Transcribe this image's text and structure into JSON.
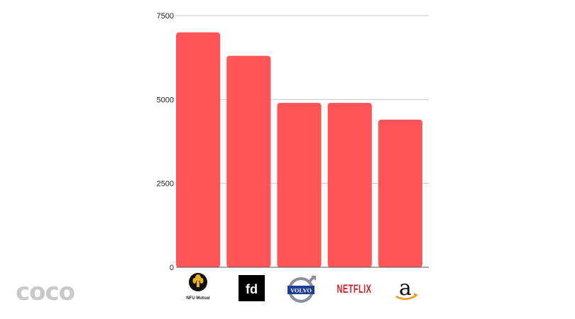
{
  "chart_data": {
    "type": "bar",
    "categories": [
      "NFU Mutual",
      "fd",
      "VOLVO",
      "NETFLIX",
      "a"
    ],
    "values": [
      7000,
      6300,
      4900,
      4900,
      4400
    ],
    "ylim": [
      0,
      7500
    ],
    "yticks": [
      0,
      2500,
      5000,
      7500
    ],
    "grid": true,
    "colors": {
      "bar": "#ff5558"
    }
  },
  "logos": {
    "nfu": {
      "label": "NFU Mutual",
      "icon": "wheatsheaf-icon"
    },
    "fd": {
      "label": "fd"
    },
    "volvo": {
      "label": "VOLVO",
      "icon": "volvo-iron-mark-icon"
    },
    "netflix": {
      "label": "NETFLIX"
    },
    "amazon": {
      "label": "a",
      "icon": "amazon-smile-icon"
    }
  },
  "watermark": {
    "text": "coco"
  }
}
